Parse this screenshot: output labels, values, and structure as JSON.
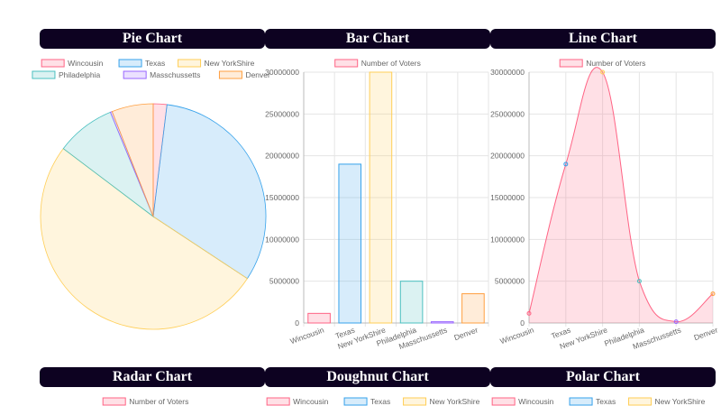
{
  "titles": {
    "pie": "Pie Chart",
    "bar": "Bar Chart",
    "line": "Line Chart",
    "radar": "Radar Chart",
    "doughnut": "Doughnut Chart",
    "polar": "Polar Chart"
  },
  "colors": {
    "fill": [
      "rgba(255,99,132,0.2)",
      "rgba(54,162,235,0.2)",
      "rgba(255,206,86,0.2)",
      "rgba(75,192,192,0.2)",
      "rgba(153,102,255,0.2)",
      "rgba(255,159,64,0.2)"
    ],
    "border": [
      "#ff6384",
      "#36a2eb",
      "#ffce56",
      "#4bc0c0",
      "#9966ff",
      "#ff9f40"
    ],
    "header_bg": "#0d0221"
  },
  "chart_data": [
    {
      "type": "pie",
      "title": "Pie Chart",
      "categories": [
        "Wincousin",
        "Texas",
        "New YorkShire",
        "Philadelphia",
        "Masschussetts",
        "Denver"
      ],
      "values": [
        1150000,
        19000000,
        30000000,
        5000000,
        150000,
        3500000
      ],
      "legend": "top"
    },
    {
      "type": "bar",
      "title": "Bar Chart",
      "series_name": "Number of Voters",
      "categories": [
        "Wincousin",
        "Texas",
        "New YorkShire",
        "Philadelphia",
        "Masschussetts",
        "Denver"
      ],
      "values": [
        1150000,
        19000000,
        30000000,
        5000000,
        150000,
        3500000
      ],
      "ylim": [
        0,
        30000000
      ],
      "yticks": [
        "0",
        "5000000",
        "10000000",
        "15000000",
        "20000000",
        "25000000",
        "30000000"
      ],
      "grid": true,
      "legend": "top"
    },
    {
      "type": "area",
      "title": "Line Chart",
      "series_name": "Number of Voters",
      "categories": [
        "Wincousin",
        "Texas",
        "New YorkShire",
        "Philadelphia",
        "Masschussetts",
        "Denver"
      ],
      "values": [
        1150000,
        19000000,
        30000000,
        5000000,
        150000,
        3500000
      ],
      "ylim": [
        0,
        30000000
      ],
      "yticks": [
        "0",
        "5000000",
        "10000000",
        "15000000",
        "20000000",
        "25000000",
        "30000000"
      ],
      "grid": true,
      "legend": "top"
    },
    {
      "type": "radar",
      "title": "Radar Chart",
      "legend_entries": [
        "Number of Voters"
      ]
    },
    {
      "type": "doughnut",
      "title": "Doughnut Chart",
      "legend_entries": [
        "Wincousin",
        "Texas",
        "New YorkShire"
      ]
    },
    {
      "type": "polar",
      "title": "Polar Chart",
      "legend_entries": [
        "Wincousin",
        "Texas",
        "New YorkShire"
      ]
    }
  ]
}
